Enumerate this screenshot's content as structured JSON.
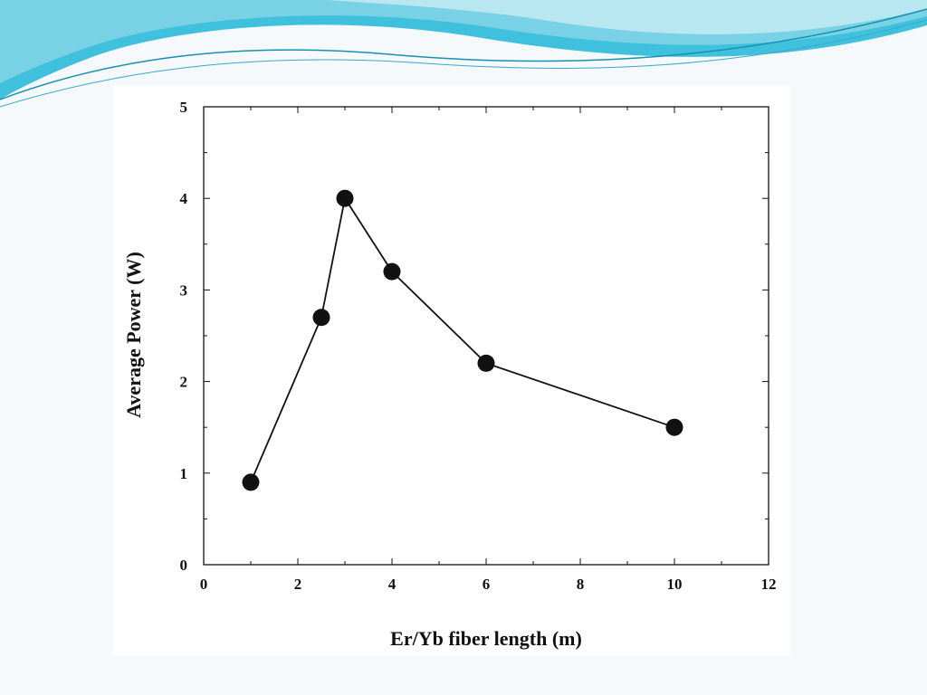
{
  "theme": {
    "banner_colors": [
      "#1fb6d6",
      "#7fd3e6",
      "#bfe8f2"
    ],
    "chart_background": "#ffffff",
    "marker_color": "#111111"
  },
  "chart_data": {
    "type": "scatter",
    "title": "",
    "xlabel": "Er/Yb fiber length (m)",
    "ylabel": "Average Power (W)",
    "xlim": [
      0,
      12
    ],
    "ylim": [
      0,
      5
    ],
    "xticks": [
      0,
      2,
      4,
      6,
      8,
      10,
      12
    ],
    "yticks": [
      0,
      1,
      2,
      3,
      4,
      5
    ],
    "x": [
      1,
      2.5,
      3,
      4,
      6,
      10
    ],
    "y": [
      0.9,
      2.7,
      4.0,
      3.2,
      2.2,
      1.5
    ],
    "connected": true,
    "marker": "filled-circle",
    "grid": false,
    "legend": null
  }
}
